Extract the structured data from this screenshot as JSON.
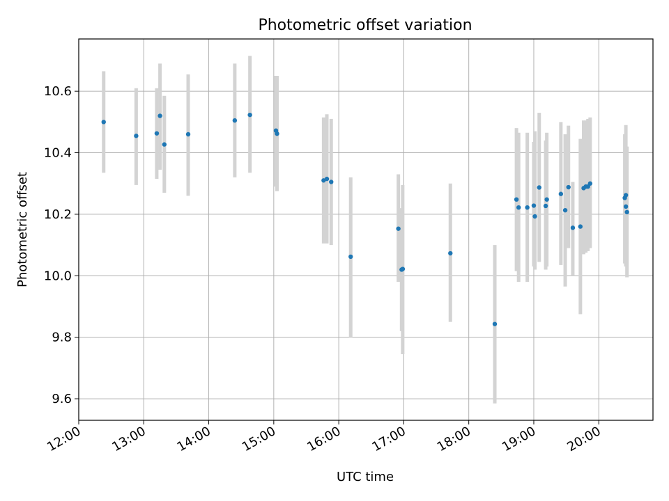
{
  "chart_data": {
    "type": "scatter",
    "title": "Photometric offset variation",
    "xlabel": "UTC time",
    "ylabel": "Photometric offset",
    "xlim": [
      "12:00",
      "20:50"
    ],
    "ylim": [
      9.53,
      10.77
    ],
    "xticks": [
      "12:00",
      "13:00",
      "14:00",
      "15:00",
      "16:00",
      "17:00",
      "18:00",
      "19:00",
      "20:00"
    ],
    "yticks": [
      "9.6",
      "9.8",
      "10.0",
      "10.2",
      "10.4",
      "10.6"
    ],
    "grid": true,
    "point_color": "#1f77b4",
    "errorbar_color": "#d3d3d3",
    "points": [
      {
        "t": "12:23",
        "y": 10.5,
        "lo": 10.335,
        "hi": 10.665
      },
      {
        "t": "12:53",
        "y": 10.455,
        "lo": 10.295,
        "hi": 10.61
      },
      {
        "t": "13:12",
        "y": 10.463,
        "lo": 10.315,
        "hi": 10.61
      },
      {
        "t": "13:15",
        "y": 10.52,
        "lo": 10.345,
        "hi": 10.69
      },
      {
        "t": "13:19",
        "y": 10.427,
        "lo": 10.27,
        "hi": 10.585
      },
      {
        "t": "13:41",
        "y": 10.46,
        "lo": 10.26,
        "hi": 10.655
      },
      {
        "t": "14:24",
        "y": 10.505,
        "lo": 10.32,
        "hi": 10.69
      },
      {
        "t": "14:38",
        "y": 10.523,
        "lo": 10.335,
        "hi": 10.715
      },
      {
        "t": "15:02",
        "y": 10.472,
        "lo": 10.29,
        "hi": 10.65
      },
      {
        "t": "15:03",
        "y": 10.462,
        "lo": 10.275,
        "hi": 10.65
      },
      {
        "t": "15:46",
        "y": 10.31,
        "lo": 10.105,
        "hi": 10.515
      },
      {
        "t": "15:49",
        "y": 10.315,
        "lo": 10.105,
        "hi": 10.525
      },
      {
        "t": "15:53",
        "y": 10.305,
        "lo": 10.1,
        "hi": 10.51
      },
      {
        "t": "16:11",
        "y": 10.062,
        "lo": 9.8,
        "hi": 10.32
      },
      {
        "t": "16:55",
        "y": 10.153,
        "lo": 9.98,
        "hi": 10.33
      },
      {
        "t": "16:58",
        "y": 10.02,
        "lo": 9.82,
        "hi": 10.22
      },
      {
        "t": "16:59",
        "y": 10.022,
        "lo": 9.745,
        "hi": 10.295
      },
      {
        "t": "17:43",
        "y": 10.073,
        "lo": 9.85,
        "hi": 10.3
      },
      {
        "t": "18:24",
        "y": 9.843,
        "lo": 9.585,
        "hi": 10.1
      },
      {
        "t": "18:44",
        "y": 10.248,
        "lo": 10.015,
        "hi": 10.48
      },
      {
        "t": "18:46",
        "y": 10.222,
        "lo": 9.98,
        "hi": 10.465
      },
      {
        "t": "18:54",
        "y": 10.222,
        "lo": 9.98,
        "hi": 10.465
      },
      {
        "t": "19:00",
        "y": 10.228,
        "lo": 10.03,
        "hi": 10.435
      },
      {
        "t": "19:01",
        "y": 10.193,
        "lo": 10.02,
        "hi": 10.47
      },
      {
        "t": "19:05",
        "y": 10.287,
        "lo": 10.045,
        "hi": 10.53
      },
      {
        "t": "19:11",
        "y": 10.227,
        "lo": 10.02,
        "hi": 10.44
      },
      {
        "t": "19:12",
        "y": 10.248,
        "lo": 10.03,
        "hi": 10.465
      },
      {
        "t": "19:25",
        "y": 10.266,
        "lo": 10.035,
        "hi": 10.5
      },
      {
        "t": "19:29",
        "y": 10.213,
        "lo": 9.965,
        "hi": 10.46
      },
      {
        "t": "19:32",
        "y": 10.288,
        "lo": 10.09,
        "hi": 10.488
      },
      {
        "t": "19:36",
        "y": 10.156,
        "lo": 10.0,
        "hi": 10.305
      },
      {
        "t": "19:43",
        "y": 10.16,
        "lo": 9.875,
        "hi": 10.445
      },
      {
        "t": "19:46",
        "y": 10.285,
        "lo": 10.07,
        "hi": 10.505
      },
      {
        "t": "19:48",
        "y": 10.29,
        "lo": 10.075,
        "hi": 10.505
      },
      {
        "t": "19:50",
        "y": 10.29,
        "lo": 10.08,
        "hi": 10.51
      },
      {
        "t": "19:52",
        "y": 10.3,
        "lo": 10.09,
        "hi": 10.515
      },
      {
        "t": "20:24",
        "y": 10.253,
        "lo": 10.04,
        "hi": 10.46
      },
      {
        "t": "20:25",
        "y": 10.262,
        "lo": 10.035,
        "hi": 10.49
      },
      {
        "t": "20:25",
        "y": 10.225,
        "lo": 10.03,
        "hi": 10.42
      },
      {
        "t": "20:26",
        "y": 10.207,
        "lo": 9.995,
        "hi": 10.42
      }
    ]
  }
}
